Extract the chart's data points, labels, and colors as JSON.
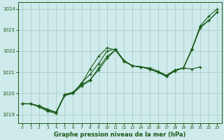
{
  "title": "Graphe pression niveau de la mer (hPa)",
  "bg_color": "#ceeaea",
  "grid_color": "#aacccc",
  "line_color": "#1a5c1a",
  "xlim": [
    -0.5,
    23.5
  ],
  "ylim": [
    1018.6,
    1024.3
  ],
  "xticks": [
    0,
    1,
    2,
    3,
    4,
    5,
    6,
    7,
    8,
    9,
    10,
    11,
    12,
    13,
    14,
    15,
    16,
    17,
    18,
    19,
    20,
    21,
    22,
    23
  ],
  "yticks": [
    1019,
    1020,
    1021,
    1022,
    1023,
    1024
  ],
  "series": [
    {
      "x": [
        0,
        1,
        2,
        3,
        4,
        5,
        6,
        7,
        8,
        9,
        10,
        11,
        12,
        13,
        14,
        15,
        16,
        17,
        18,
        19,
        20,
        21,
        22,
        23
      ],
      "y": [
        1019.5,
        1019.5,
        1019.4,
        1019.2,
        1019.1,
        1019.95,
        1020.05,
        1020.45,
        1021.15,
        1021.75,
        1022.15,
        1022.05,
        1021.55,
        1021.3,
        1021.25,
        1021.15,
        1021.0,
        1020.8,
        1021.1,
        1021.2,
        1022.1,
        1023.1,
        1023.45,
        1023.85
      ]
    },
    {
      "x": [
        0,
        1,
        2,
        3,
        4,
        5,
        6,
        7,
        8,
        9,
        10,
        11,
        12,
        13,
        14,
        15,
        16,
        17,
        18,
        19,
        20,
        21,
        22,
        23
      ],
      "y": [
        1019.5,
        1019.5,
        1019.4,
        1019.25,
        1019.1,
        1019.9,
        1020.0,
        1020.35,
        1020.6,
        1021.2,
        1021.75,
        1022.05,
        1021.5,
        1021.3,
        1021.25,
        1021.2,
        1021.05,
        1020.85,
        1021.1,
        1021.2,
        1022.05,
        1023.15,
        1023.45,
        1023.85
      ]
    },
    {
      "x": [
        0,
        1,
        2,
        3,
        4,
        5,
        6,
        7,
        8,
        9,
        10,
        11,
        12,
        13,
        14,
        15,
        16,
        17,
        18,
        19,
        20,
        21
      ],
      "y": [
        1019.5,
        1019.5,
        1019.35,
        1019.15,
        1019.05,
        1019.9,
        1020.05,
        1020.4,
        1020.65,
        1021.1,
        1021.65,
        1022.05,
        1021.55,
        1021.3,
        1021.25,
        1021.15,
        1021.0,
        1020.8,
        1021.05,
        1021.2,
        1021.15,
        1021.25
      ]
    },
    {
      "x": [
        0,
        1,
        2,
        3,
        4,
        5,
        6,
        7,
        8,
        9,
        10,
        11,
        12,
        13,
        14,
        15,
        16,
        17,
        18,
        19,
        20,
        21,
        22,
        23
      ],
      "y": [
        1019.5,
        1019.5,
        1019.4,
        1019.2,
        1019.1,
        1019.9,
        1020.0,
        1020.5,
        1020.9,
        1021.4,
        1022.0,
        1022.1,
        1021.55,
        1021.3,
        1021.25,
        1021.15,
        1021.0,
        1020.85,
        1021.1,
        1021.2,
        1022.1,
        1023.2,
        1023.65,
        1024.0
      ]
    }
  ]
}
